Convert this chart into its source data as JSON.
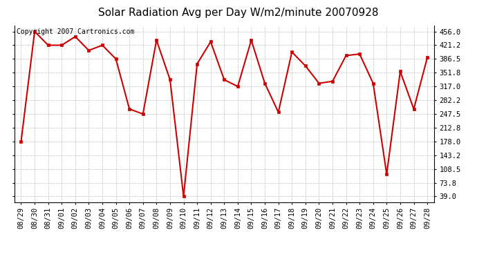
{
  "title": "Solar Radiation Avg per Day W/m2/minute 20070928",
  "copyright": "Copyright 2007 Cartronics.com",
  "dates": [
    "08/29",
    "08/30",
    "08/31",
    "09/01",
    "09/02",
    "09/03",
    "09/04",
    "09/05",
    "09/06",
    "09/07",
    "09/08",
    "09/09",
    "09/10",
    "09/11",
    "09/12",
    "09/13",
    "09/14",
    "09/15",
    "09/16",
    "09/17",
    "09/18",
    "09/19",
    "09/20",
    "09/21",
    "09/22",
    "09/23",
    "09/24",
    "09/25",
    "09/26",
    "09/27",
    "09/28"
  ],
  "values": [
    178.0,
    456.0,
    421.2,
    421.2,
    443.0,
    408.0,
    421.2,
    386.5,
    260.0,
    247.5,
    434.0,
    334.0,
    39.0,
    374.0,
    430.0,
    334.0,
    317.0,
    434.0,
    325.0,
    252.0,
    404.0,
    369.0,
    325.0,
    330.0,
    395.0,
    399.0,
    325.0,
    95.0,
    355.0,
    260.0,
    390.0
  ],
  "line_color": "#cc0000",
  "marker_color": "#cc0000",
  "bg_color": "#ffffff",
  "grid_color": "#c0c0c0",
  "title_fontsize": 11,
  "copyright_fontsize": 7,
  "tick_fontsize": 7.5,
  "ytick_values": [
    39.0,
    73.8,
    108.5,
    143.2,
    178.0,
    212.8,
    247.5,
    282.2,
    317.0,
    351.8,
    386.5,
    421.2,
    456.0
  ],
  "ylim": [
    25.0,
    470.0
  ],
  "marker_size": 3,
  "line_width": 1.5
}
